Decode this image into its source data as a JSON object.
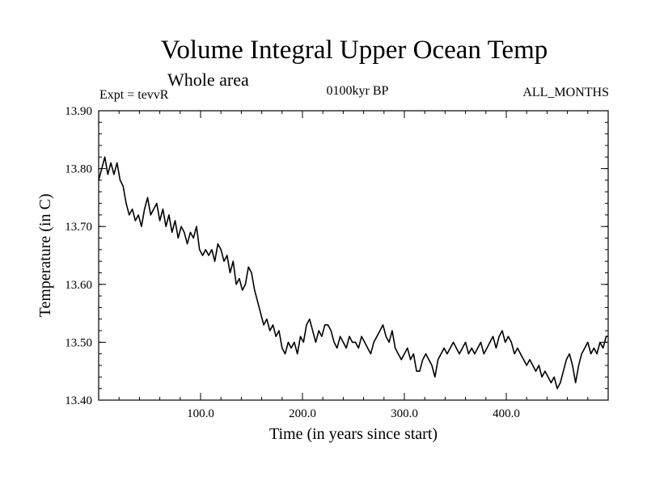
{
  "chart_data": {
    "type": "line",
    "title": "Volume Integral Upper Ocean Temp",
    "subtitle": "Whole area",
    "annotations": {
      "left": "Expt = tevvR",
      "center": "0100kyr BP",
      "right": "ALL_MONTHS"
    },
    "xlabel": "Time (in years since start)",
    "ylabel": "Temperature (in C)",
    "xlim": [
      0,
      500
    ],
    "ylim": [
      13.4,
      13.9
    ],
    "x_ticks": [
      100,
      200,
      300,
      400
    ],
    "x_tick_labels": [
      "100.0",
      "200.0",
      "300.0",
      "400.0"
    ],
    "y_ticks": [
      13.4,
      13.5,
      13.6,
      13.7,
      13.8,
      13.9
    ],
    "y_tick_labels": [
      "13.40",
      "13.50",
      "13.60",
      "13.70",
      "13.80",
      "13.90"
    ],
    "grid": false,
    "series_color": "#000000",
    "series": [
      {
        "x": [
          0,
          3,
          6,
          9,
          12,
          15,
          18,
          21,
          24,
          27,
          30,
          33,
          36,
          39,
          42,
          45,
          48,
          51,
          54,
          57,
          60,
          63,
          66,
          69,
          72,
          75,
          78,
          81,
          84,
          87,
          90,
          93,
          96,
          99,
          102,
          105,
          108,
          111,
          114,
          117,
          120,
          123,
          126,
          129,
          132,
          135,
          138,
          141,
          144,
          147,
          150,
          153,
          156,
          159,
          162,
          165,
          168,
          171,
          174,
          177,
          180,
          183,
          186,
          189,
          192,
          195,
          198,
          201,
          204,
          207,
          210,
          213,
          216,
          219,
          222,
          225,
          228,
          231,
          234,
          237,
          240,
          243,
          246,
          249,
          252,
          255,
          258,
          261,
          264,
          267,
          270,
          273,
          276,
          279,
          282,
          285,
          288,
          291,
          294,
          297,
          300,
          303,
          306,
          309,
          312,
          315,
          318,
          321,
          324,
          327,
          330,
          333,
          336,
          339,
          342,
          345,
          348,
          351,
          354,
          357,
          360,
          363,
          366,
          369,
          372,
          375,
          378,
          381,
          384,
          387,
          390,
          393,
          396,
          399,
          402,
          405,
          408,
          411,
          414,
          417,
          420,
          423,
          426,
          429,
          432,
          435,
          438,
          441,
          444,
          447,
          450,
          453,
          456,
          459,
          462,
          465,
          468,
          471,
          474,
          477,
          480,
          483,
          486,
          489,
          492,
          495,
          498,
          500
        ],
        "values": [
          13.78,
          13.8,
          13.82,
          13.79,
          13.81,
          13.79,
          13.81,
          13.78,
          13.77,
          13.74,
          13.72,
          13.73,
          13.71,
          13.72,
          13.7,
          13.73,
          13.75,
          13.72,
          13.73,
          13.74,
          13.71,
          13.73,
          13.7,
          13.72,
          13.69,
          13.71,
          13.68,
          13.7,
          13.69,
          13.67,
          13.69,
          13.68,
          13.7,
          13.66,
          13.65,
          13.66,
          13.65,
          13.66,
          13.64,
          13.67,
          13.66,
          13.64,
          13.65,
          13.62,
          13.64,
          13.6,
          13.61,
          13.59,
          13.6,
          13.63,
          13.62,
          13.59,
          13.57,
          13.55,
          13.53,
          13.54,
          13.52,
          13.53,
          13.51,
          13.52,
          13.49,
          13.48,
          13.5,
          13.49,
          13.5,
          13.48,
          13.51,
          13.5,
          13.53,
          13.54,
          13.52,
          13.5,
          13.52,
          13.51,
          13.53,
          13.53,
          13.52,
          13.5,
          13.49,
          13.51,
          13.5,
          13.49,
          13.51,
          13.5,
          13.5,
          13.49,
          13.51,
          13.5,
          13.49,
          13.48,
          13.5,
          13.51,
          13.52,
          13.53,
          13.51,
          13.5,
          13.52,
          13.49,
          13.48,
          13.47,
          13.48,
          13.49,
          13.47,
          13.48,
          13.45,
          13.45,
          13.47,
          13.48,
          13.47,
          13.46,
          13.44,
          13.47,
          13.48,
          13.49,
          13.48,
          13.49,
          13.5,
          13.49,
          13.48,
          13.49,
          13.5,
          13.48,
          13.49,
          13.48,
          13.49,
          13.5,
          13.48,
          13.49,
          13.5,
          13.51,
          13.49,
          13.51,
          13.52,
          13.5,
          13.51,
          13.5,
          13.48,
          13.49,
          13.48,
          13.47,
          13.46,
          13.47,
          13.46,
          13.45,
          13.46,
          13.44,
          13.45,
          13.44,
          13.43,
          13.44,
          13.42,
          13.43,
          13.45,
          13.47,
          13.48,
          13.46,
          13.43,
          13.46,
          13.48,
          13.49,
          13.5,
          13.48,
          13.49,
          13.48,
          13.5,
          13.49,
          13.51,
          13.51
        ]
      }
    ]
  }
}
